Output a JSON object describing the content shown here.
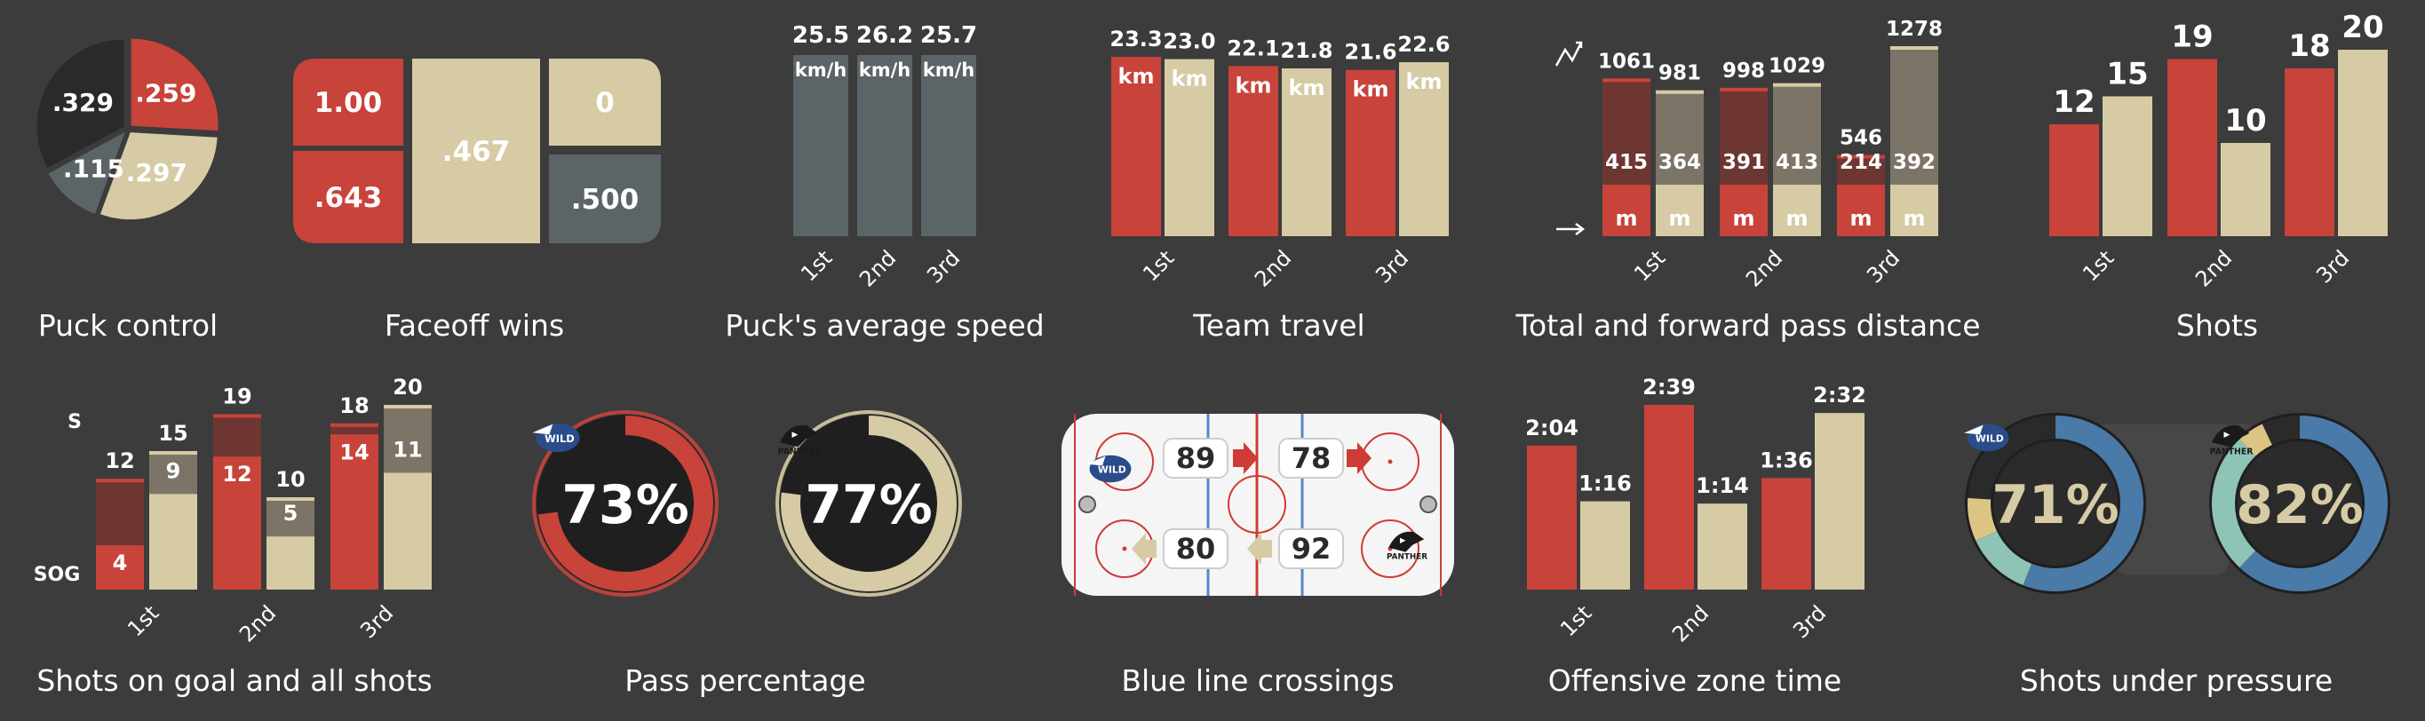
{
  "colors": {
    "bg": "#3c3c3c",
    "red": "#c8433a",
    "beige": "#d6cba4",
    "slate": "#5b6567",
    "dark": "#2a2a2a",
    "blue": "#4a7aa8",
    "teal": "#8ec4b6",
    "yellow": "#dcc583",
    "rink": "#f5f5f5",
    "rinkRed": "#cf3b36",
    "rinkBlue": "#5b85c6"
  },
  "chart_data": [
    {
      "type": "pie",
      "title": "Puck control",
      "slices": [
        {
          "label": ".259",
          "value": 0.259,
          "color": "red"
        },
        {
          "label": ".297",
          "value": 0.297,
          "color": "beige"
        },
        {
          "label": ".115",
          "value": 0.115,
          "color": "slate"
        },
        {
          "label": ".329",
          "value": 0.329,
          "color": "dark"
        }
      ]
    },
    {
      "type": "treemap",
      "title": "Faceoff wins",
      "cells": [
        {
          "label": "1.00",
          "value": 1.0,
          "color": "red"
        },
        {
          "label": ".643",
          "value": 0.643,
          "color": "red"
        },
        {
          "label": ".467",
          "value": 0.467,
          "color": "beige"
        },
        {
          "label": "0",
          "value": 0,
          "color": "beige"
        },
        {
          "label": ".500",
          "value": 0.5,
          "color": "slate"
        }
      ]
    },
    {
      "type": "bar",
      "title": "Puck's average speed",
      "categories": [
        "1st",
        "2nd",
        "3rd"
      ],
      "values": [
        25.5,
        26.2,
        25.7
      ],
      "value_labels": [
        "25.5",
        "26.2",
        "25.7"
      ],
      "unit": "km/h"
    },
    {
      "type": "bar",
      "title": "Team travel",
      "categories": [
        "1st",
        "2nd",
        "3rd"
      ],
      "unit": "km",
      "series": [
        {
          "values": [
            23.3,
            22.1,
            21.6
          ],
          "labels": [
            "23.3",
            "22.1",
            "21.6"
          ]
        },
        {
          "values": [
            23.0,
            21.8,
            22.6
          ],
          "labels": [
            "23.0",
            "21.8",
            "22.6"
          ]
        }
      ]
    },
    {
      "type": "bar",
      "title": "Total and forward pass distance",
      "categories": [
        "1st",
        "2nd",
        "3rd"
      ],
      "unit": "m",
      "series": [
        {
          "total": [
            1061,
            998,
            546
          ],
          "forward": [
            415,
            391,
            214
          ]
        },
        {
          "total": [
            981,
            1029,
            1278
          ],
          "forward": [
            364,
            413,
            392
          ]
        }
      ]
    },
    {
      "type": "bar",
      "title": "Shots",
      "categories": [
        "1st",
        "2nd",
        "3rd"
      ],
      "series": [
        {
          "values": [
            12,
            19,
            18
          ]
        },
        {
          "values": [
            15,
            10,
            20
          ]
        }
      ]
    },
    {
      "type": "bar",
      "title": "Shots on goal and all shots",
      "categories": [
        "1st",
        "2nd",
        "3rd"
      ],
      "axis_labels": {
        "shots": "S",
        "sog": "SOG"
      },
      "series": [
        {
          "shots": [
            12,
            19,
            18
          ],
          "sog": [
            4,
            12,
            14
          ]
        },
        {
          "shots": [
            15,
            10,
            20
          ],
          "sog": [
            9,
            5,
            11
          ]
        }
      ]
    },
    {
      "type": "donut",
      "title": "Pass percentage",
      "items": [
        {
          "label": "73%",
          "value": 0.73,
          "color": "red"
        },
        {
          "label": "77%",
          "value": 0.77,
          "color": "beige"
        }
      ]
    },
    {
      "type": "table",
      "title": "Blue line crossings",
      "top": {
        "left": "89",
        "right": "78"
      },
      "bottom": {
        "left": "80",
        "right": "92"
      },
      "logos": {
        "home": "WILD WINGS",
        "away": "PANTHER"
      }
    },
    {
      "type": "bar",
      "title": "Offensive zone time",
      "categories": [
        "1st",
        "2nd",
        "3rd"
      ],
      "series": [
        {
          "seconds": [
            124,
            159,
            96
          ],
          "labels": [
            "2:04",
            "2:39",
            "1:36"
          ]
        },
        {
          "seconds": [
            76,
            74,
            152
          ],
          "labels": [
            "1:16",
            "1:14",
            "2:32"
          ]
        }
      ]
    },
    {
      "type": "donut",
      "title": "Shots under pressure",
      "items": [
        {
          "label": "71%"
        },
        {
          "label": "82%"
        }
      ]
    }
  ]
}
